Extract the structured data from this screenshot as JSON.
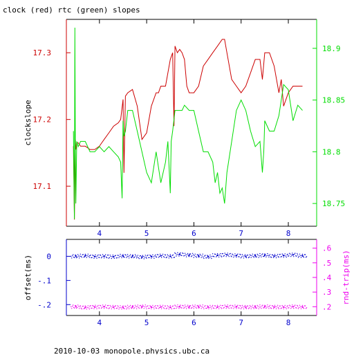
{
  "title": "clock (red) rtc (green) slopes",
  "footer": "2010-10-03 monopole.physics.ubc.ca",
  "colors": {
    "clock": "#cc0000",
    "rtc": "#00dd00",
    "offset": "#0000cc",
    "rndtrip": "#ee00ee",
    "axis": "#000000"
  },
  "chart_data": [
    {
      "type": "line",
      "name": "slopes",
      "title": "clock (red) rtc (green) slopes",
      "xlabel": "",
      "ylabel": "clockslope",
      "y2label": "",
      "xlim": [
        3.3,
        8.6
      ],
      "ylim": [
        17.04,
        17.35
      ],
      "y2lim": [
        18.728,
        18.928
      ],
      "xticks": [
        4,
        5,
        6,
        7,
        8
      ],
      "yticks": [
        17.1,
        17.2,
        17.3
      ],
      "y2ticks": [
        18.75,
        18.8,
        18.85,
        18.9
      ],
      "series": [
        {
          "name": "clock (red)",
          "axis": "left",
          "x": [
            3.45,
            3.47,
            3.49,
            3.5,
            3.52,
            3.55,
            3.6,
            3.7,
            3.8,
            3.9,
            4.0,
            4.05,
            4.1,
            4.2,
            4.3,
            4.4,
            4.45,
            4.5,
            4.52,
            4.55,
            4.6,
            4.7,
            4.8,
            4.9,
            5.0,
            5.1,
            5.2,
            5.25,
            5.3,
            5.4,
            5.5,
            5.55,
            5.58,
            5.6,
            5.65,
            5.7,
            5.75,
            5.8,
            5.85,
            5.9,
            6.0,
            6.1,
            6.2,
            6.3,
            6.4,
            6.5,
            6.6,
            6.65,
            6.7,
            6.8,
            6.9,
            7.0,
            7.1,
            7.2,
            7.3,
            7.4,
            7.45,
            7.5,
            7.55,
            7.6,
            7.7,
            7.8,
            7.85,
            7.9,
            8.0,
            8.1,
            8.2,
            8.3
          ],
          "y": [
            17.16,
            17.05,
            17.17,
            17.155,
            17.165,
            17.165,
            17.16,
            17.16,
            17.155,
            17.155,
            17.16,
            17.165,
            17.17,
            17.18,
            17.19,
            17.195,
            17.2,
            17.23,
            17.12,
            17.235,
            17.24,
            17.245,
            17.22,
            17.17,
            17.18,
            17.22,
            17.24,
            17.24,
            17.25,
            17.25,
            17.29,
            17.3,
            17.19,
            17.31,
            17.3,
            17.305,
            17.3,
            17.29,
            17.25,
            17.24,
            17.24,
            17.25,
            17.28,
            17.29,
            17.3,
            17.31,
            17.32,
            17.32,
            17.3,
            17.26,
            17.25,
            17.24,
            17.25,
            17.27,
            17.29,
            17.29,
            17.26,
            17.3,
            17.3,
            17.3,
            17.28,
            17.24,
            17.26,
            17.22,
            17.24,
            17.25,
            17.25,
            17.25
          ]
        },
        {
          "name": "rtc (green)",
          "axis": "right",
          "x": [
            3.45,
            3.47,
            3.48,
            3.49,
            3.5,
            3.52,
            3.55,
            3.6,
            3.7,
            3.8,
            3.9,
            4.0,
            4.1,
            4.2,
            4.3,
            4.4,
            4.45,
            4.48,
            4.5,
            4.52,
            4.55,
            4.6,
            4.7,
            4.8,
            4.9,
            5.0,
            5.1,
            5.2,
            5.3,
            5.4,
            5.45,
            5.5,
            5.52,
            5.55,
            5.6,
            5.65,
            5.7,
            5.75,
            5.8,
            5.9,
            6.0,
            6.1,
            6.2,
            6.3,
            6.4,
            6.45,
            6.5,
            6.55,
            6.6,
            6.65,
            6.7,
            6.8,
            6.9,
            7.0,
            7.1,
            7.2,
            7.3,
            7.4,
            7.45,
            7.48,
            7.5,
            7.6,
            7.7,
            7.8,
            7.85,
            7.9,
            8.0,
            8.1,
            8.2,
            8.3
          ],
          "y": [
            18.82,
            18.735,
            18.92,
            18.8,
            18.75,
            18.81,
            18.805,
            18.81,
            18.81,
            18.8,
            18.8,
            18.805,
            18.8,
            18.805,
            18.8,
            18.795,
            18.79,
            18.755,
            18.83,
            18.815,
            18.82,
            18.84,
            18.84,
            18.82,
            18.8,
            18.78,
            18.77,
            18.8,
            18.77,
            18.79,
            18.81,
            18.76,
            18.81,
            18.82,
            18.84,
            18.84,
            18.84,
            18.84,
            18.845,
            18.84,
            18.84,
            18.82,
            18.8,
            18.8,
            18.79,
            18.77,
            18.78,
            18.76,
            18.765,
            18.75,
            18.78,
            18.81,
            18.84,
            18.85,
            18.84,
            18.82,
            18.805,
            18.81,
            18.78,
            18.8,
            18.83,
            18.82,
            18.82,
            18.835,
            18.85,
            18.865,
            18.86,
            18.83,
            18.845,
            18.84
          ]
        }
      ]
    },
    {
      "type": "scatter",
      "name": "offset-rndtrip",
      "title": "",
      "xlabel": "",
      "ylabel": "offset(ms)",
      "y2label": "rnd-trip(ms)",
      "xlim": [
        3.3,
        8.6
      ],
      "ylim": [
        -0.245,
        0.07
      ],
      "y2lim": [
        0.14,
        0.66
      ],
      "xticks": [
        4,
        5,
        6,
        7,
        8
      ],
      "yticks": [
        0,
        -0.1,
        -0.2
      ],
      "y2ticks": [
        0.2,
        0.3,
        0.4,
        0.5,
        0.6
      ],
      "series": [
        {
          "name": "offset",
          "axis": "left",
          "x": [
            3.5,
            3.7,
            3.9,
            4.1,
            4.3,
            4.5,
            4.7,
            4.9,
            5.1,
            5.3,
            5.5,
            5.7,
            5.9,
            6.1,
            6.3,
            6.5,
            6.7,
            6.9,
            7.1,
            7.3,
            7.5,
            7.7,
            7.9,
            8.1,
            8.3
          ],
          "y": [
            0.0,
            0.002,
            -0.001,
            0.0,
            -0.002,
            0.001,
            0.0,
            -0.003,
            -0.001,
            0.002,
            0.0,
            0.008,
            0.005,
            0.002,
            -0.002,
            0.004,
            0.006,
            0.003,
            0.0,
            0.002,
            0.004,
            0.001,
            0.003,
            0.006,
            0.002
          ]
        },
        {
          "name": "rnd-trip",
          "axis": "right",
          "x": [
            3.5,
            3.7,
            3.9,
            4.1,
            4.3,
            4.5,
            4.7,
            4.9,
            5.1,
            5.3,
            5.5,
            5.7,
            5.9,
            6.1,
            6.3,
            6.5,
            6.7,
            6.9,
            7.1,
            7.3,
            7.5,
            7.7,
            7.9,
            8.1,
            8.3
          ],
          "y": [
            0.2,
            0.195,
            0.198,
            0.2,
            0.197,
            0.195,
            0.198,
            0.2,
            0.197,
            0.198,
            0.196,
            0.2,
            0.199,
            0.2,
            0.197,
            0.198,
            0.2,
            0.199,
            0.197,
            0.198,
            0.2,
            0.198,
            0.197,
            0.2,
            0.198
          ]
        }
      ]
    }
  ]
}
